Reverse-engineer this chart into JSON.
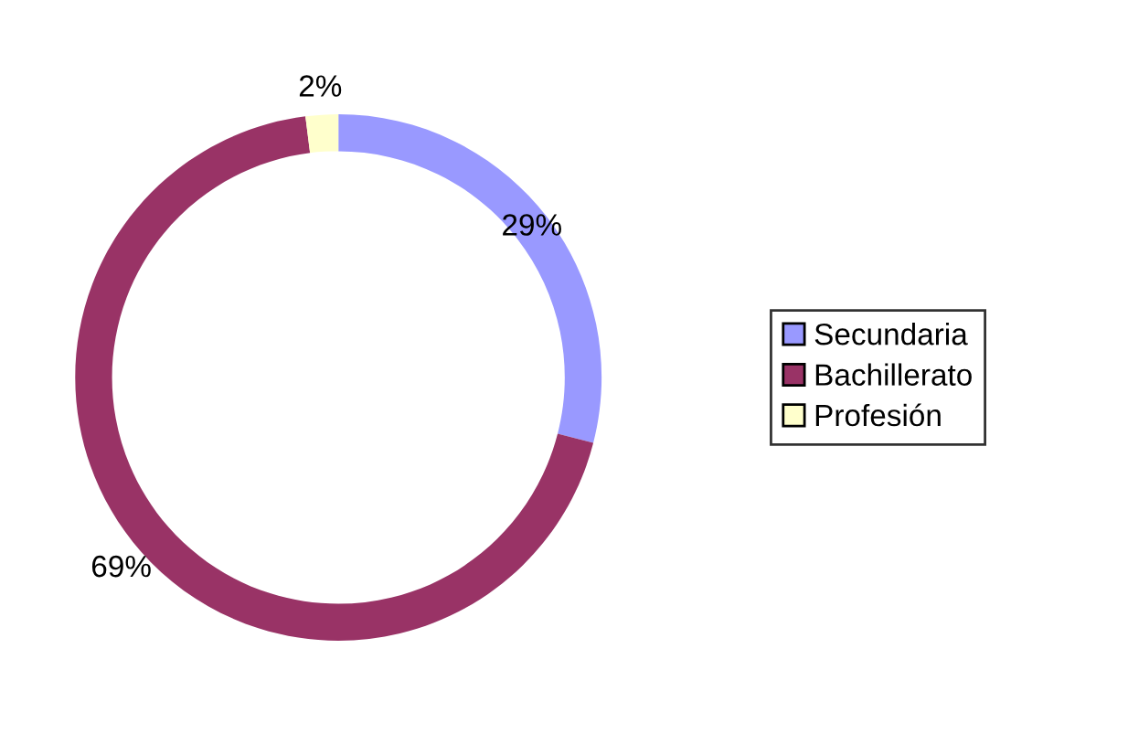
{
  "chart_data": {
    "type": "donut",
    "categories": [
      "Secundaria",
      "Bachillerato",
      "Profesión"
    ],
    "values": [
      29,
      69,
      2
    ],
    "colors": [
      "#9999ff",
      "#993366",
      "#ffffcc"
    ],
    "value_labels": [
      "29%",
      "69%",
      "2%"
    ],
    "legend": "right"
  }
}
